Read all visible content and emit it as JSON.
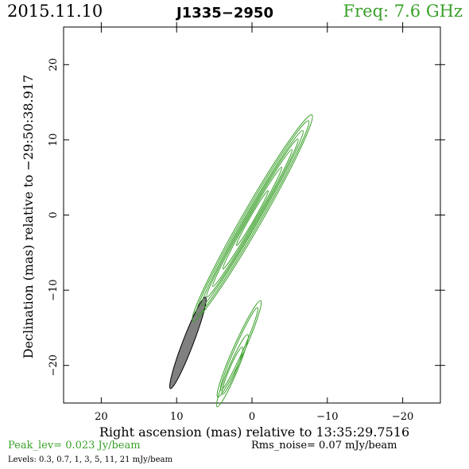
{
  "header": {
    "date": "2015.11.10",
    "source": "J1335−2950",
    "freq": "Freq: 7.6 GHz"
  },
  "footer": {
    "peak": "Peak_lev=  0.023 Jy/beam",
    "noise": "Rms_noise= 0.07 mJy/beam",
    "levels": "Levels: 0.3,  0.7,    1,    3,    5,   11,   21  mJy/beam"
  },
  "colors": {
    "contour": "#3aa02a",
    "beam_fill": "#808080",
    "text": "#000000"
  },
  "chart_data": {
    "type": "contour",
    "xlabel": "Right ascension (mas) relative to 13:35:29.7516",
    "ylabel": "Declination (mas) relative to −29:50:38.917",
    "xlim": [
      25,
      -25
    ],
    "ylim": [
      -25,
      25
    ],
    "xticks": [
      20,
      10,
      0,
      -10,
      -20
    ],
    "xtick_labels": [
      "20",
      "10",
      "0",
      "−10",
      "−20"
    ],
    "yticks": [
      20,
      10,
      0,
      -10,
      -20
    ],
    "ytick_labels": [
      "20",
      "10",
      "0",
      "−10",
      "−20"
    ],
    "levels_mJy": [
      0.3,
      0.7,
      1,
      3,
      5,
      11,
      21
    ],
    "beam": {
      "x": 8.5,
      "y": -17,
      "major_mas": 13,
      "minor_mas": 1.4,
      "pa_deg": 21
    },
    "components": [
      {
        "x": -0.05,
        "y": -0.4,
        "pa_deg": 30,
        "contours": [
          [
            15.8,
            1.3
          ],
          [
            14.9,
            1.1
          ],
          [
            13.4,
            0.9
          ],
          [
            12.1,
            0.75
          ],
          [
            10.5,
            0.6
          ],
          [
            7.8,
            0.45
          ],
          [
            4.2,
            0.3
          ]
        ]
      },
      {
        "x": 1.7,
        "y": -17.8,
        "pa_deg": 24,
        "contours": [
          [
            7.0,
            0.75
          ],
          [
            6.0,
            0.55
          ]
        ]
      },
      {
        "x": 2.6,
        "y": -20.7,
        "pa_deg": 23,
        "contours": [
          [
            5.2,
            0.6
          ],
          [
            3.4,
            0.45
          ]
        ]
      }
    ]
  }
}
